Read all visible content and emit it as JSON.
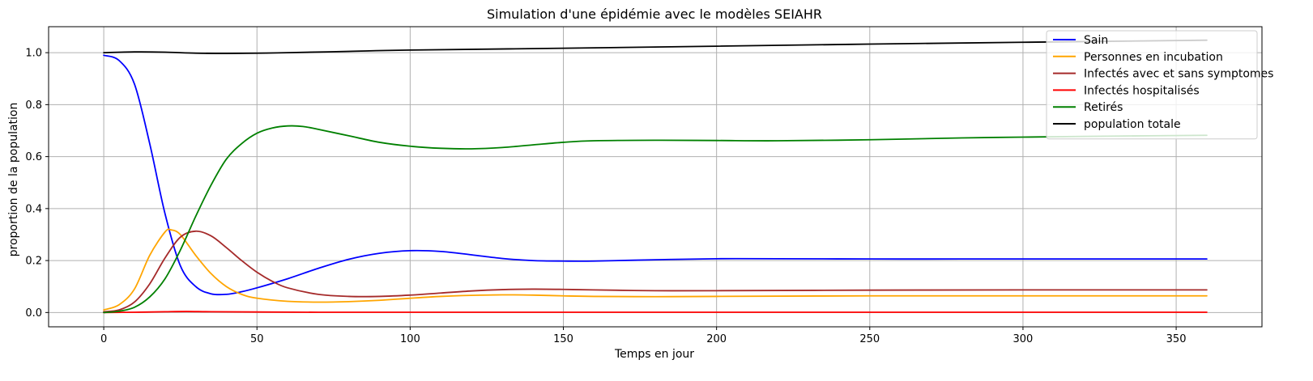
{
  "chart_data": {
    "type": "line",
    "title": "Simulation d'une épidémie avec le modèles SEIAHR",
    "xlabel": "Temps en jour",
    "ylabel": "proportion de la population",
    "xlim": [
      -18,
      378
    ],
    "ylim": [
      -0.055,
      1.1
    ],
    "xticks": [
      0,
      50,
      100,
      150,
      200,
      250,
      300,
      350
    ],
    "yticks": [
      0.0,
      0.2,
      0.4,
      0.6,
      0.8,
      1.0
    ],
    "xtick_labels": [
      "0",
      "50",
      "100",
      "150",
      "200",
      "250",
      "300",
      "350"
    ],
    "ytick_labels": [
      "0.0",
      "0.2",
      "0.4",
      "0.6",
      "0.8",
      "1.0"
    ],
    "grid": true,
    "legend_position": "top-right",
    "series": [
      {
        "name": "Sain",
        "color": "#0000ff",
        "x": [
          0,
          5,
          10,
          15,
          20,
          25,
          30,
          35,
          40,
          45,
          50,
          60,
          70,
          80,
          90,
          100,
          110,
          120,
          130,
          140,
          150,
          160,
          180,
          200,
          220,
          250,
          280,
          300,
          330,
          360
        ],
        "y": [
          0.99,
          0.97,
          0.88,
          0.65,
          0.38,
          0.18,
          0.1,
          0.072,
          0.07,
          0.08,
          0.095,
          0.13,
          0.17,
          0.205,
          0.228,
          0.238,
          0.235,
          0.222,
          0.208,
          0.2,
          0.198,
          0.198,
          0.203,
          0.207,
          0.207,
          0.206,
          0.206,
          0.206,
          0.206,
          0.206
        ]
      },
      {
        "name": "Personnes en incubation",
        "color": "#ffa500",
        "x": [
          0,
          5,
          10,
          15,
          20,
          22,
          25,
          30,
          35,
          40,
          45,
          50,
          60,
          70,
          80,
          90,
          100,
          110,
          120,
          130,
          140,
          150,
          160,
          180,
          200,
          250,
          300,
          360
        ],
        "y": [
          0.01,
          0.03,
          0.09,
          0.22,
          0.31,
          0.318,
          0.3,
          0.22,
          0.15,
          0.1,
          0.07,
          0.055,
          0.043,
          0.04,
          0.042,
          0.047,
          0.055,
          0.062,
          0.066,
          0.068,
          0.067,
          0.064,
          0.062,
          0.061,
          0.062,
          0.064,
          0.064,
          0.064
        ]
      },
      {
        "name": "Infectés avec et sans symptomes",
        "color": "#a52a2a",
        "x": [
          0,
          5,
          10,
          15,
          20,
          25,
          30,
          35,
          40,
          45,
          50,
          55,
          60,
          70,
          80,
          90,
          100,
          110,
          120,
          130,
          140,
          150,
          160,
          180,
          200,
          250,
          300,
          360
        ],
        "y": [
          0.003,
          0.01,
          0.04,
          0.11,
          0.21,
          0.29,
          0.313,
          0.295,
          0.25,
          0.2,
          0.155,
          0.12,
          0.095,
          0.07,
          0.062,
          0.062,
          0.067,
          0.075,
          0.083,
          0.088,
          0.09,
          0.089,
          0.087,
          0.084,
          0.084,
          0.086,
          0.087,
          0.087
        ]
      },
      {
        "name": "Infectés hospitalisés",
        "color": "#ff0000",
        "x": [
          0,
          10,
          20,
          27,
          35,
          50,
          70,
          100,
          150,
          200,
          250,
          300,
          360
        ],
        "y": [
          0.0,
          0.001,
          0.003,
          0.004,
          0.003,
          0.002,
          0.001,
          0.001,
          0.001,
          0.001,
          0.001,
          0.001,
          0.001
        ]
      },
      {
        "name": "Retirés",
        "color": "#008000",
        "x": [
          0,
          5,
          10,
          15,
          20,
          25,
          30,
          35,
          40,
          45,
          50,
          55,
          60,
          65,
          70,
          80,
          90,
          100,
          110,
          120,
          130,
          140,
          150,
          160,
          180,
          200,
          220,
          250,
          280,
          300,
          330,
          360
        ],
        "y": [
          0.0,
          0.005,
          0.02,
          0.06,
          0.13,
          0.24,
          0.37,
          0.49,
          0.59,
          0.65,
          0.69,
          0.71,
          0.718,
          0.716,
          0.705,
          0.68,
          0.655,
          0.64,
          0.632,
          0.63,
          0.635,
          0.645,
          0.655,
          0.661,
          0.663,
          0.662,
          0.661,
          0.665,
          0.672,
          0.675,
          0.679,
          0.682
        ]
      },
      {
        "name": "population totale",
        "color": "#000000",
        "x": [
          0,
          10,
          20,
          30,
          40,
          50,
          60,
          80,
          100,
          150,
          200,
          250,
          300,
          360
        ],
        "y": [
          1.0,
          1.003,
          1.002,
          0.998,
          0.997,
          0.998,
          1.0,
          1.005,
          1.01,
          1.017,
          1.025,
          1.033,
          1.04,
          1.048
        ]
      }
    ]
  }
}
